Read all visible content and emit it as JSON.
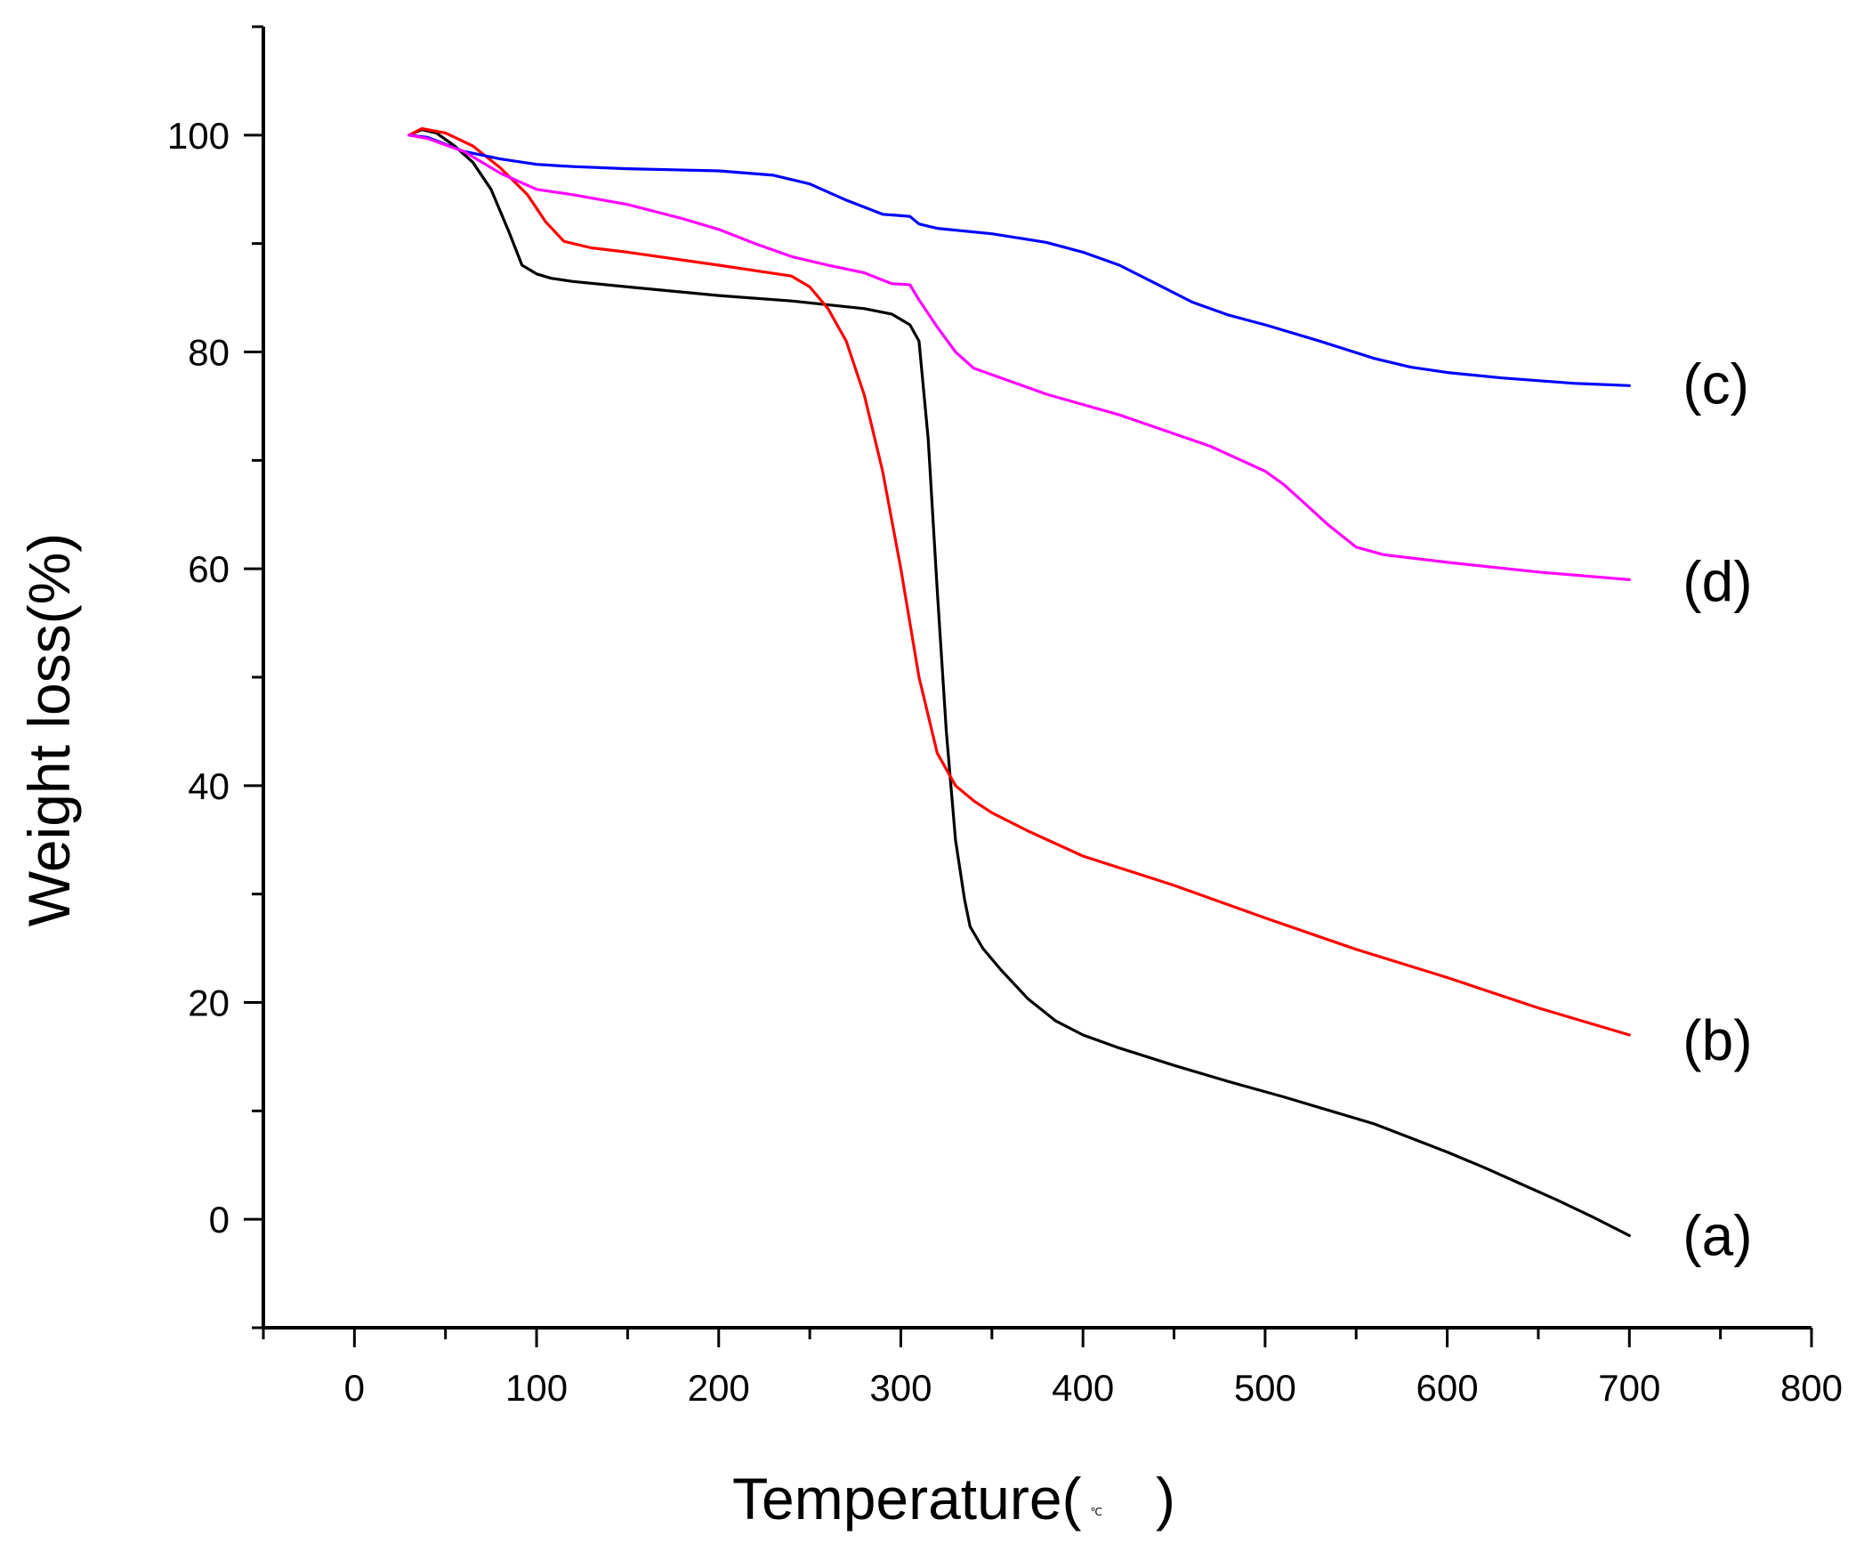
{
  "chart_data": {
    "type": "line",
    "title": "",
    "xlabel": "Temperature(",
    "xlabel_unit": "℃",
    "xlabel_close": ")",
    "ylabel": "Weight loss(%)",
    "xlim": [
      -50,
      800
    ],
    "ylim": [
      -10,
      110
    ],
    "xticks": [
      0,
      100,
      200,
      300,
      400,
      500,
      600,
      700,
      800
    ],
    "yticks": [
      0,
      20,
      40,
      60,
      80,
      100
    ],
    "xtick_labels": [
      "0",
      "100",
      "200",
      "300",
      "400",
      "500",
      "600",
      "700",
      "800"
    ],
    "ytick_labels": [
      "0",
      "20",
      "40",
      "60",
      "80",
      "100"
    ],
    "series": [
      {
        "name": "(a)",
        "color": "#000000",
        "x": [
          30,
          37,
          45,
          55,
          65,
          75,
          85,
          92,
          100,
          108,
          120,
          150,
          200,
          240,
          280,
          295,
          305,
          310,
          315,
          320,
          325,
          330,
          335,
          338,
          345,
          355,
          370,
          385,
          400,
          420,
          450,
          480,
          510,
          540,
          560,
          580,
          600,
          620,
          640,
          660,
          680,
          700
        ],
        "y": [
          100,
          100.5,
          100.2,
          99,
          97.5,
          95,
          91,
          88,
          87.2,
          86.8,
          86.5,
          86,
          85.2,
          84.7,
          84,
          83.5,
          82.5,
          81,
          72,
          58,
          45,
          35,
          29.5,
          27,
          25,
          23,
          20.3,
          18.3,
          17,
          15.8,
          14.2,
          12.7,
          11.3,
          9.8,
          8.8,
          7.5,
          6.2,
          4.8,
          3.3,
          1.8,
          0.2,
          -1.5
        ]
      },
      {
        "name": "(b)",
        "color": "#ff0000",
        "x": [
          30,
          37,
          50,
          65,
          80,
          95,
          105,
          115,
          130,
          150,
          200,
          240,
          250,
          260,
          270,
          280,
          290,
          300,
          310,
          320,
          330,
          340,
          350,
          370,
          400,
          450,
          500,
          550,
          600,
          650,
          680,
          700
        ],
        "y": [
          100,
          100.6,
          100.2,
          99,
          97,
          94.5,
          92,
          90.2,
          89.6,
          89.2,
          88,
          87,
          86,
          84,
          81,
          76,
          69,
          60,
          50,
          43,
          40,
          38.6,
          37.5,
          35.8,
          33.5,
          30.8,
          27.8,
          24.9,
          22.3,
          19.5,
          18,
          17
        ]
      },
      {
        "name": "(c)",
        "color": "#0000ff",
        "x": [
          30,
          40,
          60,
          80,
          100,
          120,
          150,
          200,
          230,
          250,
          270,
          290,
          298,
          305,
          310,
          320,
          350,
          380,
          400,
          420,
          440,
          460,
          480,
          500,
          530,
          560,
          580,
          600,
          630,
          670,
          700
        ],
        "y": [
          100,
          99.8,
          98.5,
          97.8,
          97.3,
          97.1,
          96.9,
          96.7,
          96.3,
          95.5,
          94,
          92.7,
          92.6,
          92.5,
          91.8,
          91.4,
          90.9,
          90.1,
          89.2,
          88,
          86.3,
          84.6,
          83.4,
          82.5,
          81,
          79.4,
          78.6,
          78.1,
          77.6,
          77.1,
          76.9
        ]
      },
      {
        "name": "(d)",
        "color": "#ff00ff",
        "x": [
          30,
          40,
          60,
          80,
          100,
          120,
          150,
          180,
          200,
          220,
          240,
          260,
          280,
          295,
          305,
          310,
          320,
          330,
          340,
          355,
          380,
          420,
          470,
          500,
          510,
          520,
          535,
          550,
          565,
          600,
          650,
          700
        ],
        "y": [
          100,
          99.7,
          98.5,
          96.5,
          95,
          94.5,
          93.6,
          92.3,
          91.3,
          90,
          88.8,
          88,
          87.3,
          86.3,
          86.2,
          84.8,
          82.3,
          80,
          78.5,
          77.6,
          76.1,
          74.2,
          71.3,
          69,
          67.8,
          66.3,
          64,
          62,
          61.3,
          60.6,
          59.7,
          59
        ]
      }
    ]
  }
}
